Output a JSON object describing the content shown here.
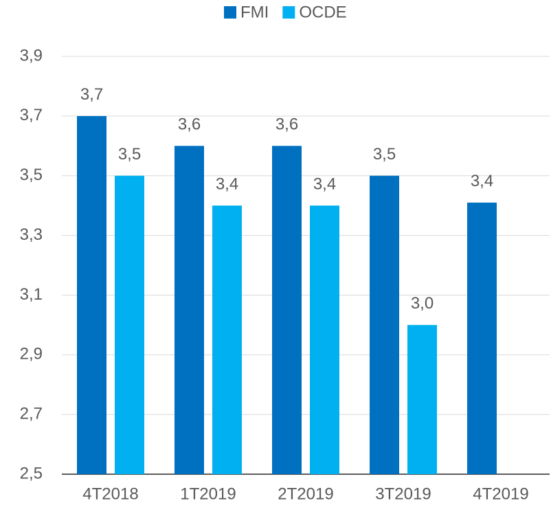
{
  "chart_data": {
    "type": "bar",
    "categories": [
      "4T2018",
      "1T2019",
      "2T2019",
      "3T2019",
      "4T2019"
    ],
    "series": [
      {
        "name": "FMI",
        "color": "#0070c0",
        "values": [
          3.7,
          3.6,
          3.6,
          3.5,
          3.41
        ],
        "value_labels": [
          "3,7",
          "3,6",
          "3,6",
          "3,5",
          "3,4"
        ]
      },
      {
        "name": "OCDE",
        "color": "#00b0f0",
        "values": [
          3.5,
          3.4,
          3.4,
          3.0,
          null
        ],
        "value_labels": [
          "3,5",
          "3,4",
          "3,4",
          "3,0",
          null
        ]
      }
    ],
    "ylim": [
      2.5,
      3.9
    ],
    "yticks": [
      {
        "value": 2.5,
        "label": "2,5"
      },
      {
        "value": 2.7,
        "label": "2,7"
      },
      {
        "value": 2.9,
        "label": "2,9"
      },
      {
        "value": 3.1,
        "label": "3,1"
      },
      {
        "value": 3.3,
        "label": "3,3"
      },
      {
        "value": 3.5,
        "label": "3,5"
      },
      {
        "value": 3.7,
        "label": "3,7"
      },
      {
        "value": 3.9,
        "label": "3,9"
      }
    ],
    "grid": true,
    "legend": "top"
  }
}
